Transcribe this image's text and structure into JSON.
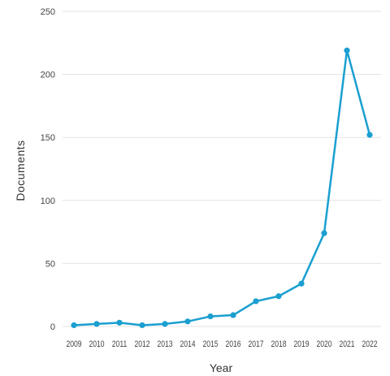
{
  "chart_data": {
    "type": "line",
    "title": "",
    "xlabel": "Year",
    "ylabel": "Documents",
    "ylim": [
      0,
      250
    ],
    "yticks": [
      0,
      50,
      100,
      150,
      200,
      250
    ],
    "grid": true,
    "legend": "none",
    "line_color": "#1a9fd0",
    "categories": [
      "2009",
      "2010",
      "2011",
      "2012",
      "2013",
      "2014",
      "2015",
      "2016",
      "2017",
      "2018",
      "2019",
      "2020",
      "2021",
      "2022"
    ],
    "series": [
      {
        "values": [
          1,
          2,
          3,
          1,
          2,
          4,
          8,
          9,
          20,
          24,
          34,
          74,
          219,
          152
        ]
      }
    ]
  }
}
